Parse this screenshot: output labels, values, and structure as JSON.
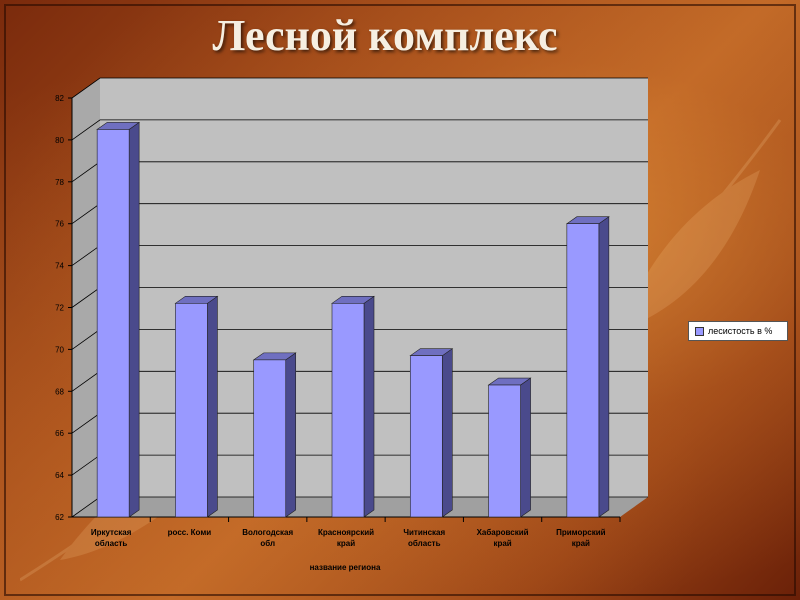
{
  "slide": {
    "title": "Лесной комплекс"
  },
  "chart_data": {
    "type": "bar",
    "categories": [
      [
        "Иркутская",
        "область"
      ],
      [
        "росс. Коми"
      ],
      [
        "Вологодская",
        "обл"
      ],
      [
        "Красноярский",
        "край"
      ],
      [
        "Читинская",
        "область"
      ],
      [
        "Хабаровский",
        "край"
      ],
      [
        "Приморский",
        "край"
      ]
    ],
    "series": [
      {
        "name": "лесистость в %",
        "values": [
          80.5,
          72.2,
          69.5,
          72.2,
          69.7,
          68.3,
          76.0
        ]
      }
    ],
    "xlabel": "название региона",
    "ylabel": "",
    "ylim": [
      62,
      82
    ],
    "yticks": [
      62,
      64,
      66,
      68,
      70,
      72,
      74,
      76,
      78,
      80,
      82
    ],
    "grid": true,
    "legend_position": "right",
    "colors": {
      "bar_front": "#9999ff",
      "bar_side": "#4a4a8c",
      "bar_top": "#6f6fc0",
      "wall": "#c0c0c0",
      "floor": "#a8a8a8"
    }
  }
}
